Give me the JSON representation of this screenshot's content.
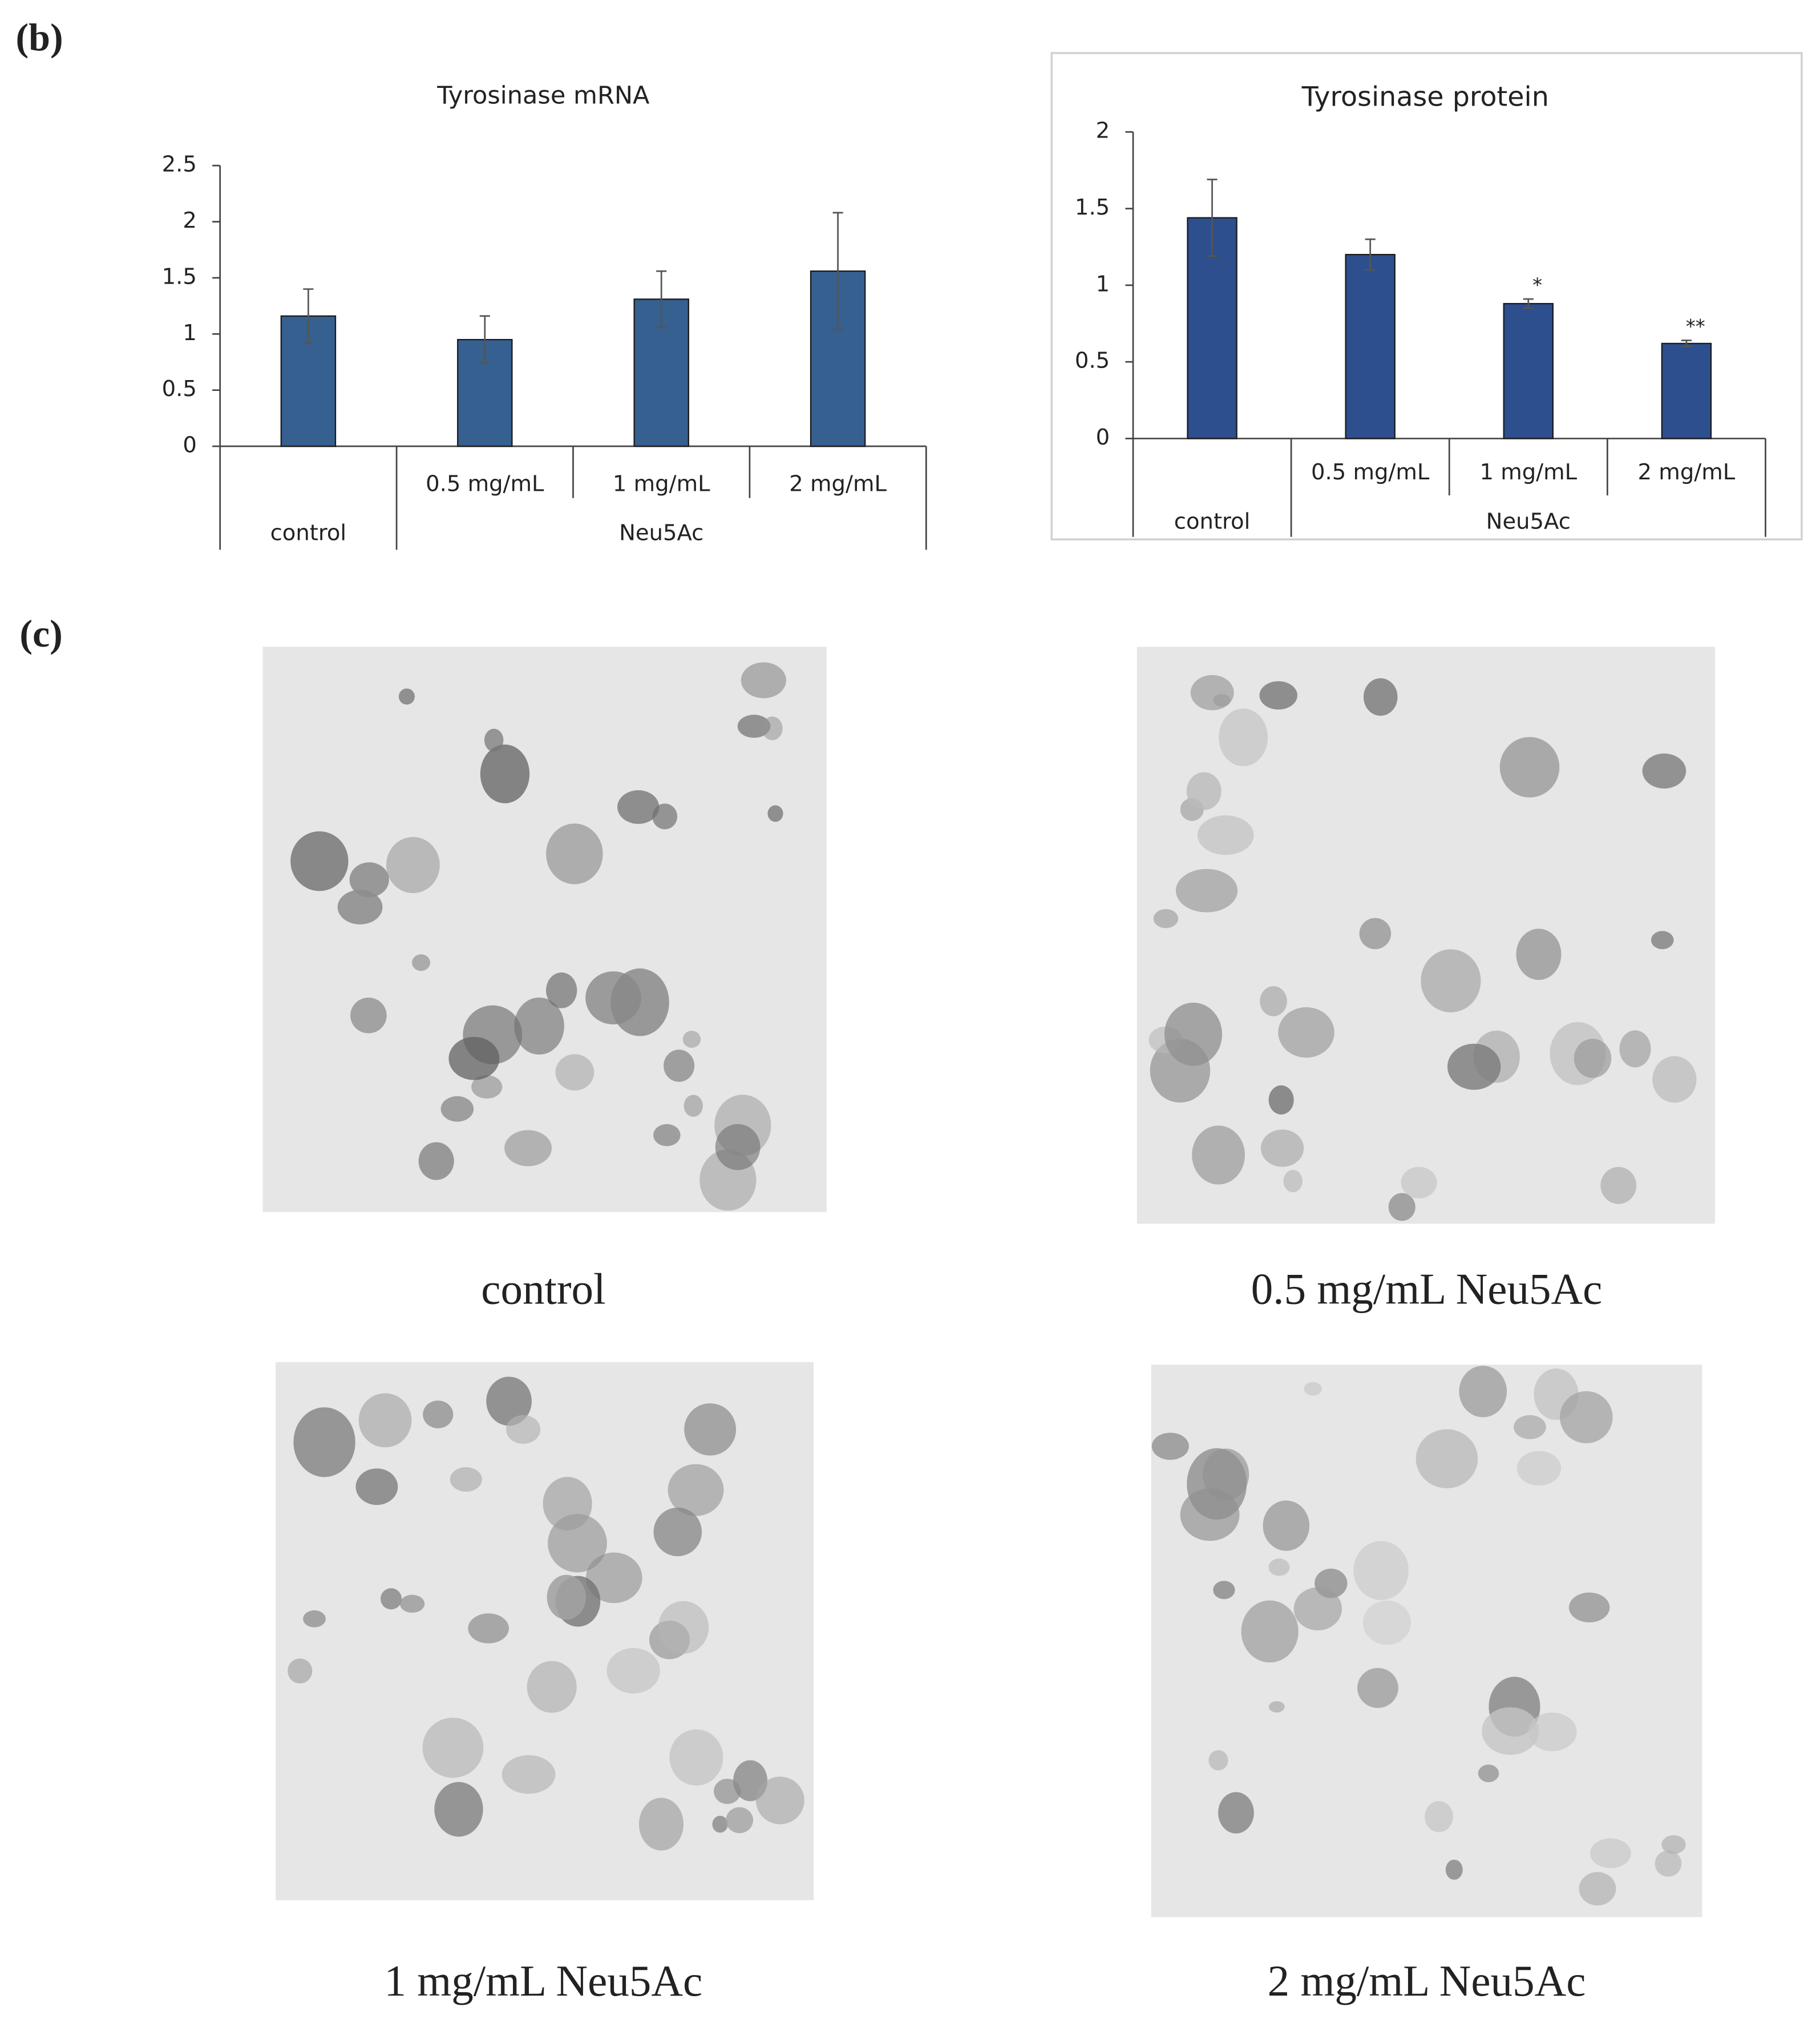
{
  "chart_data": [
    {
      "type": "bar",
      "title": "Tyrosinase mRNA",
      "categories": [
        null,
        "0.5 mg/mL",
        "1 mg/mL",
        "2 mg/mL"
      ],
      "groups": [
        {
          "label": "control",
          "count": 1
        },
        {
          "label": "Neu5Ac",
          "count": 3
        }
      ],
      "values": [
        1.16,
        0.95,
        1.31,
        1.56
      ],
      "errors": [
        0.24,
        0.21,
        0.25,
        0.52
      ],
      "color": "#35608f",
      "ylim": [
        0,
        2.5
      ],
      "yticks": [
        0,
        0.5,
        1,
        1.5,
        2,
        2.5
      ],
      "frame": false
    },
    {
      "type": "bar",
      "title": "Tyrosinase protein",
      "categories": [
        null,
        "0.5 mg/mL",
        "1 mg/mL",
        "2 mg/mL"
      ],
      "groups": [
        {
          "label": "control",
          "count": 1
        },
        {
          "label": "Neu5Ac",
          "count": 3
        }
      ],
      "values": [
        1.44,
        1.2,
        0.88,
        0.62
      ],
      "errors": [
        0.25,
        0.1,
        0.03,
        0.02
      ],
      "value_annotations": [
        null,
        null,
        "*",
        "**"
      ],
      "color": "#2d4f8e",
      "ylim": [
        0,
        2
      ],
      "yticks": [
        0,
        0.5,
        1,
        1.5,
        2
      ],
      "frame": true
    }
  ],
  "panel_labels": [
    "(b)",
    "(c)"
  ],
  "images": [
    {
      "caption": "control"
    },
    {
      "caption": "0.5 mg/mL Neu5Ac"
    },
    {
      "caption": "1 mg/mL Neu5Ac"
    },
    {
      "caption": "2 mg/mL Neu5Ac"
    }
  ]
}
